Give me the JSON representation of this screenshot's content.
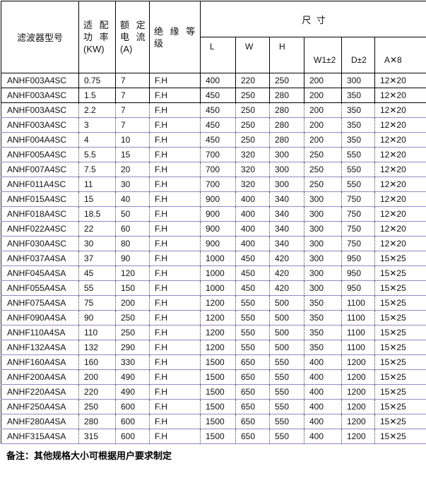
{
  "colors": {
    "band_border_purple": "#9688c0",
    "solid_border_black": "#000000",
    "dotted_border_gray": "#4a4a4a",
    "background": "#ffffff"
  },
  "table": {
    "header": {
      "col_model": "滤波器型号",
      "col_power_line1": "适 配",
      "col_power_line2": "功 率",
      "col_power_line3": "(KW)",
      "col_current_line1": "额 定",
      "col_current_line2": "电 流",
      "col_current_line3": "(A)",
      "col_insulation_line1": "绝 缘 等",
      "col_insulation_line2": "级",
      "col_size_group": "尺 寸",
      "sub": [
        "L",
        "W",
        "H",
        "W1±2",
        "D±2",
        "A✕8"
      ]
    },
    "rows": [
      [
        "ANHF003A4SC",
        "0.75",
        "7",
        "F.H",
        "400",
        "220",
        "250",
        "200",
        "300",
        "12✕20"
      ],
      [
        "ANHF003A4SC",
        "1.5",
        "7",
        "F.H",
        "450",
        "250",
        "280",
        "200",
        "350",
        "12✕20"
      ],
      [
        "ANHF003A4SC",
        "2.2",
        "7",
        "F.H",
        "450",
        "250",
        "280",
        "200",
        "350",
        "12✕20"
      ],
      [
        "ANHF003A4SC",
        "3",
        "7",
        "F.H",
        "450",
        "250",
        "280",
        "200",
        "350",
        "12✕20"
      ],
      [
        "ANHF004A4SC",
        "4",
        "10",
        "F.H",
        "450",
        "250",
        "280",
        "200",
        "350",
        "12✕20"
      ],
      [
        "ANHF005A4SC",
        "5.5",
        "15",
        "F.H",
        "700",
        "320",
        "300",
        "250",
        "550",
        "12✕20"
      ],
      [
        "ANHF007A4SC",
        "7.5",
        "20",
        "F.H",
        "700",
        "320",
        "300",
        "250",
        "550",
        "12✕20"
      ],
      [
        "ANHF011A4SC",
        "11",
        "30",
        "F.H",
        "700",
        "320",
        "300",
        "250",
        "550",
        "12✕20"
      ],
      [
        "ANHF015A4SC",
        "15",
        "40",
        "F.H",
        "900",
        "400",
        "340",
        "300",
        "750",
        "12✕20"
      ],
      [
        "ANHF018A4SC",
        "18.5",
        "50",
        "F.H",
        "900",
        "400",
        "340",
        "300",
        "750",
        "12✕20"
      ],
      [
        "ANHF022A4SC",
        "22",
        "60",
        "F.H",
        "900",
        "400",
        "340",
        "300",
        "750",
        "12✕20"
      ],
      [
        "ANHF030A4SC",
        "30",
        "80",
        "F.H",
        "900",
        "400",
        "340",
        "300",
        "750",
        "12✕20"
      ],
      [
        "ANHF037A4SA",
        "37",
        "90",
        "F.H",
        "1000",
        "450",
        "420",
        "300",
        "950",
        "15✕25"
      ],
      [
        "ANHF045A4SA",
        "45",
        "120",
        "F.H",
        "1000",
        "450",
        "420",
        "300",
        "950",
        "15✕25"
      ],
      [
        "ANHF055A4SA",
        "55",
        "150",
        "F.H",
        "1000",
        "450",
        "420",
        "300",
        "950",
        "15✕25"
      ],
      [
        "ANHF075A4SA",
        "75",
        "200",
        "F.H",
        "1200",
        "550",
        "500",
        "350",
        "1100",
        "15✕25"
      ],
      [
        "ANHF090A4SA",
        "90",
        "250",
        "F.H",
        "1200",
        "550",
        "500",
        "350",
        "1100",
        "15✕25"
      ],
      [
        "ANHF110A4SA",
        "110",
        "250",
        "F.H",
        "1200",
        "550",
        "500",
        "350",
        "1100",
        "15✕25"
      ],
      [
        "ANHF132A4SA",
        "132",
        "290",
        "F.H",
        "1200",
        "550",
        "500",
        "350",
        "1100",
        "15✕25"
      ],
      [
        "ANHF160A4SA",
        "160",
        "330",
        "F.H",
        "1500",
        "650",
        "550",
        "400",
        "1200",
        "15✕25"
      ],
      [
        "ANHF200A4SA",
        "200",
        "490",
        "F.H",
        "1500",
        "650",
        "550",
        "400",
        "1200",
        "15✕25"
      ],
      [
        "ANHF220A4SA",
        "220",
        "490",
        "F.H",
        "1500",
        "650",
        "550",
        "400",
        "1200",
        "15✕25"
      ],
      [
        "ANHF250A4SA",
        "250",
        "600",
        "F.H",
        "1500",
        "650",
        "550",
        "400",
        "1200",
        "15✕25"
      ],
      [
        "ANHF280A4SA",
        "280",
        "600",
        "F.H",
        "1500",
        "650",
        "550",
        "400",
        "1200",
        "15✕25"
      ],
      [
        "ANHF315A4SA",
        "315",
        "600",
        "F.H",
        "1500",
        "650",
        "550",
        "400",
        "1200",
        "15✕25"
      ]
    ],
    "footer_note": "备注：其他规格大小可根据用户要求制定"
  }
}
